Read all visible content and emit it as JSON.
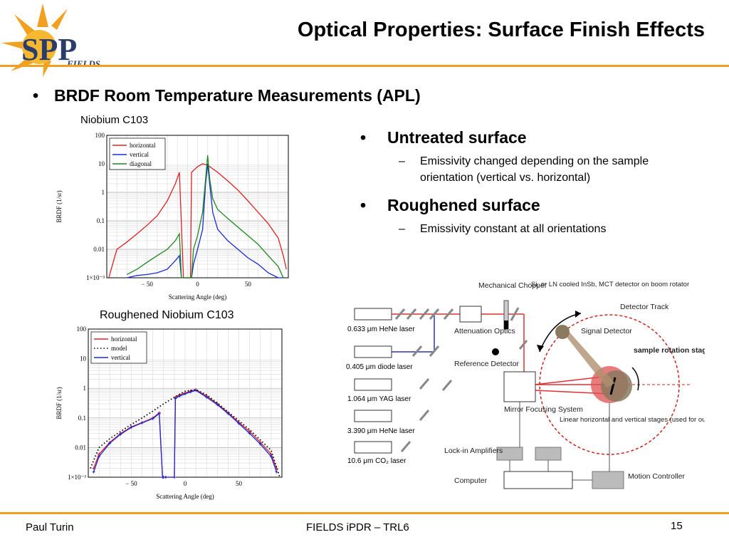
{
  "header": {
    "title": "Optical Properties: Surface Finish Effects",
    "logo_text_main": "SPP",
    "logo_text_sub": "FIELDS"
  },
  "main_bullet": "BRDF Room Temperature Measurements (APL)",
  "colors": {
    "accent": "#f0a020",
    "horizontal": "#e02020",
    "vertical": "#1a2adb",
    "diagonal": "#1a8a1a",
    "laser_red": "#e03030",
    "laser_blue": "#3030c0"
  },
  "left_panel": {
    "chart1_caption": "Niobium C103",
    "chart2_caption": "Roughened Niobium C103"
  },
  "right_panel": {
    "b1": "Untreated surface",
    "b1_sub": "Emissivity changed depending on the sample orientation (vertical vs. horizontal)",
    "b2": "Roughened surface",
    "b2_sub": "Emissivity constant at all orientations"
  },
  "chart_data": [
    {
      "type": "line",
      "xlabel": "Scattering Angle (deg)",
      "ylabel": "BRDF (1/sr)",
      "yscale": "log",
      "ylim": [
        0.001,
        100
      ],
      "xlim": [
        -90,
        90
      ],
      "xticks": [
        "− 50",
        "0",
        "50"
      ],
      "yticks": [
        "1×10⁻³",
        "0.01",
        "0.1",
        "1",
        "10",
        "100"
      ],
      "legend": [
        "horizontal",
        "vertical",
        "diagonal"
      ],
      "legend_position": "top-left",
      "grid": true,
      "series": [
        {
          "name": "horizontal",
          "x": [
            -88,
            -80,
            -70,
            -60,
            -50,
            -40,
            -30,
            -22,
            -18,
            -14,
            -12,
            -10,
            -7,
            -6,
            0,
            5,
            10,
            20,
            30,
            40,
            50,
            60,
            70,
            80,
            85,
            88
          ],
          "y": [
            0.001,
            0.01,
            0.018,
            0.035,
            0.07,
            0.15,
            0.5,
            2,
            5,
            0.001,
            0.001,
            0.001,
            0.001,
            5,
            8,
            10,
            9,
            5,
            2.5,
            1.2,
            0.5,
            0.2,
            0.08,
            0.025,
            0.006,
            0.002
          ]
        },
        {
          "name": "vertical",
          "x": [
            -70,
            -60,
            -50,
            -40,
            -30,
            -22,
            -18,
            -16,
            -12,
            -9,
            -6,
            -4,
            0,
            5,
            8,
            10,
            12,
            15,
            20,
            30,
            40,
            50,
            60,
            70,
            80,
            85
          ],
          "y": [
            0.001,
            0.0012,
            0.0013,
            0.0015,
            0.002,
            0.004,
            0.006,
            0.001,
            0.001,
            0.001,
            0.001,
            0.003,
            0.01,
            0.05,
            2,
            10,
            2,
            0.2,
            0.05,
            0.02,
            0.01,
            0.005,
            0.003,
            0.0015,
            0.001,
            0.001
          ]
        },
        {
          "name": "diagonal",
          "x": [
            -70,
            -60,
            -50,
            -40,
            -30,
            -22,
            -18,
            -16,
            -12,
            -9,
            -6,
            -4,
            0,
            5,
            8,
            10,
            12,
            15,
            20,
            30,
            40,
            50,
            60,
            70,
            80,
            85
          ],
          "y": [
            0.0013,
            0.002,
            0.0035,
            0.006,
            0.01,
            0.02,
            0.035,
            0.001,
            0.001,
            0.001,
            0.001,
            0.01,
            0.03,
            0.2,
            3,
            20,
            3,
            0.6,
            0.25,
            0.12,
            0.06,
            0.03,
            0.015,
            0.006,
            0.0025,
            0.001
          ]
        }
      ]
    },
    {
      "type": "line",
      "xlabel": "Scattering Angle (deg)",
      "ylabel": "BRDF (1/sr)",
      "yscale": "log",
      "ylim": [
        0.001,
        100
      ],
      "xlim": [
        -90,
        90
      ],
      "xticks": [
        "− 50",
        "0",
        "50"
      ],
      "yticks": [
        "1×10⁻³",
        "0.01",
        "0.1",
        "1",
        "10",
        "100"
      ],
      "legend": [
        "horizontal",
        "model",
        "vertical"
      ],
      "legend_position": "top-left",
      "grid": true,
      "series": [
        {
          "name": "horizontal",
          "x": [
            -85,
            -80,
            -70,
            -60,
            -50,
            -40,
            -30,
            -24,
            -21,
            -20,
            -18,
            -10,
            -9,
            -5,
            0,
            5,
            10,
            20,
            30,
            40,
            50,
            60,
            70,
            80,
            85
          ],
          "y": [
            0.002,
            0.006,
            0.015,
            0.03,
            0.05,
            0.07,
            0.1,
            0.15,
            0.001,
            0.001,
            0.001,
            0.001,
            0.5,
            0.6,
            0.7,
            0.8,
            0.9,
            0.55,
            0.3,
            0.15,
            0.07,
            0.035,
            0.015,
            0.006,
            0.002
          ]
        },
        {
          "name": "model",
          "x": [
            -88,
            -80,
            -70,
            -60,
            -50,
            -40,
            -30,
            -20,
            -10,
            0,
            10,
            20,
            30,
            40,
            50,
            60,
            70,
            80,
            88
          ],
          "y": [
            0.002,
            0.01,
            0.02,
            0.035,
            0.06,
            0.1,
            0.17,
            0.3,
            0.5,
            0.8,
            0.9,
            0.6,
            0.32,
            0.16,
            0.08,
            0.04,
            0.018,
            0.008,
            0.001
          ]
        },
        {
          "name": "vertical",
          "x": [
            -85,
            -80,
            -70,
            -60,
            -50,
            -40,
            -30,
            -24,
            -21,
            -20,
            -18,
            -10,
            -9,
            -5,
            0,
            5,
            10,
            20,
            30,
            40,
            50,
            60,
            70,
            80,
            85
          ],
          "y": [
            0.0015,
            0.005,
            0.014,
            0.028,
            0.048,
            0.068,
            0.095,
            0.14,
            0.001,
            0.001,
            0.001,
            0.001,
            0.45,
            0.55,
            0.65,
            0.75,
            0.85,
            0.5,
            0.28,
            0.14,
            0.065,
            0.03,
            0.013,
            0.005,
            0.0015
          ]
        }
      ]
    }
  ],
  "diagram": {
    "mechanical_chopper": "Mechanical Chopper",
    "detector_note": "Si, or LN cooled InSb, MCT detector on boom rotator",
    "detector_track": "Detector Track",
    "signal_detector": "Signal Detector",
    "sample_stage": "sample rotation stage",
    "attenuation": "Attenuation Optics",
    "reference": "Reference Detector",
    "mirror": "Mirror Focusing System",
    "linear_note": "Linear horizontal and vertical stages (used for out of plane measurements)",
    "lockin": "Lock-in Amplifiers",
    "computer": "Computer",
    "motion": "Motion Controller",
    "lasers": [
      {
        "label": "0.633 μm HeNe laser"
      },
      {
        "label": "0.405 μm diode laser"
      },
      {
        "label": "1.064 μm YAG laser"
      },
      {
        "label": "3.390 μm HeNe laser"
      },
      {
        "label": "10.6 μm CO₂ laser"
      }
    ]
  },
  "footer": {
    "left": "Paul Turin",
    "center": "FIELDS iPDR – TRL6",
    "page": "15"
  }
}
